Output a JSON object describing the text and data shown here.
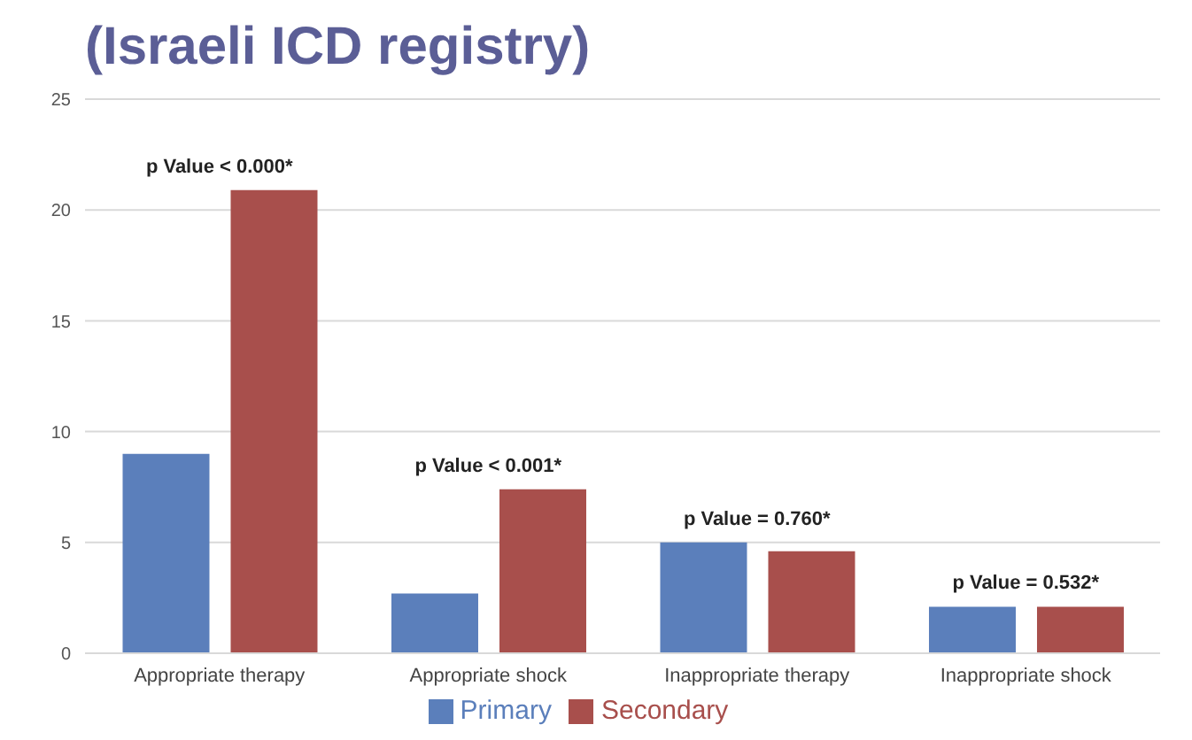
{
  "chart_data": {
    "type": "bar",
    "title": "(Israeli ICD registry)",
    "categories": [
      "Appropriate therapy",
      "Appropriate shock",
      "Inappropriate therapy",
      "Inappropriate shock"
    ],
    "series": [
      {
        "name": "Primary",
        "color": "#5b7fbb",
        "values": [
          9.0,
          2.7,
          5.0,
          2.1
        ]
      },
      {
        "name": "Secondary",
        "color": "#a84f4c",
        "values": [
          20.9,
          7.4,
          4.6,
          2.1
        ]
      }
    ],
    "ylim": [
      0,
      25
    ],
    "yticks": [
      0,
      5,
      10,
      15,
      20,
      25
    ],
    "grid": "y",
    "legend": "bottom",
    "annotations": [
      "p Value < 0.000*",
      "p Value < 0.001*",
      "p Value = 0.760*",
      "p Value = 0.532*"
    ]
  }
}
